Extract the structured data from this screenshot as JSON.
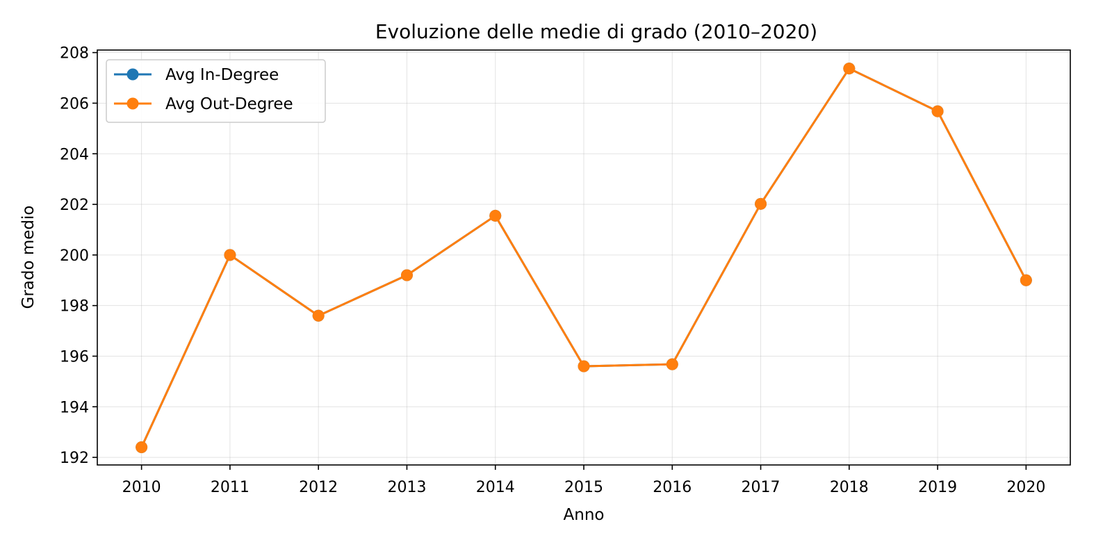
{
  "chart_data": {
    "type": "line",
    "title": "Evoluzione delle medie di grado (2010–2020)",
    "xlabel": "Anno",
    "ylabel": "Grado medio",
    "x": [
      2010,
      2011,
      2012,
      2013,
      2014,
      2015,
      2016,
      2017,
      2018,
      2019,
      2020
    ],
    "ylim": [
      191.7,
      208.1
    ],
    "yticks": [
      192,
      194,
      196,
      198,
      200,
      202,
      204,
      206,
      208
    ],
    "grid": true,
    "legend_position": "top-left",
    "series": [
      {
        "name": "Avg In-Degree",
        "color": "#1f77b4",
        "marker": "circle",
        "values": [
          192.4,
          200.0,
          197.6,
          199.2,
          201.55,
          195.6,
          195.68,
          202.02,
          207.37,
          205.68,
          199.0
        ]
      },
      {
        "name": "Avg Out-Degree",
        "color": "#ff7f0e",
        "marker": "circle",
        "values": [
          192.4,
          200.0,
          197.6,
          199.2,
          201.55,
          195.6,
          195.68,
          202.02,
          207.37,
          205.68,
          199.0
        ]
      }
    ]
  }
}
